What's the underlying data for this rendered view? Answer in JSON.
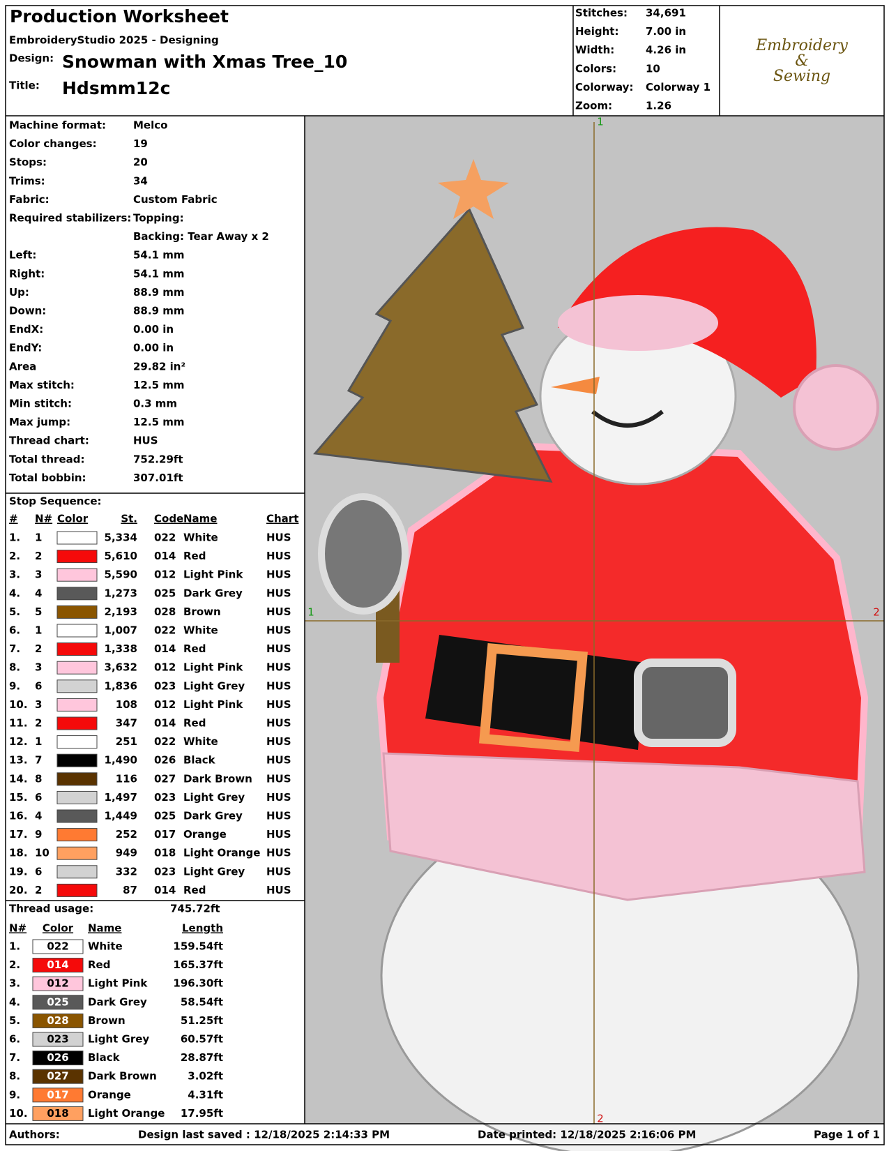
{
  "header": {
    "title": "Production Worksheet",
    "software": "EmbroideryStudio 2025 - Designing",
    "design_label": "Design:",
    "design": "Snowman with Xmas Tree_10",
    "title_label": "Title:",
    "title_value": "Hdsmm12c"
  },
  "summary": [
    [
      "Stitches:",
      "34,691"
    ],
    [
      "Height:",
      "7.00 in"
    ],
    [
      "Width:",
      "4.26 in"
    ],
    [
      "Colors:",
      "10"
    ],
    [
      "Colorway:",
      "Colorway 1"
    ],
    [
      "Zoom:",
      "1.26"
    ]
  ],
  "logo": [
    "Embroidery",
    "&",
    "Sewing"
  ],
  "machine": {
    "rows_top": [
      [
        "Machine format:",
        "Melco"
      ],
      [
        "Color changes:",
        "19"
      ],
      [
        "Stops:",
        "20"
      ],
      [
        "Trims:",
        "34"
      ],
      [
        "Fabric:",
        "Custom Fabric"
      ]
    ],
    "stabilizers": {
      "label": "Required stabilizers:",
      "topping": "Topping:",
      "backing": "Backing: Tear Away x 2"
    },
    "rows_bottom": [
      [
        "Left:",
        "54.1 mm"
      ],
      [
        "Right:",
        "54.1 mm"
      ],
      [
        "Up:",
        "88.9 mm"
      ],
      [
        "Down:",
        "88.9 mm"
      ],
      [
        "EndX:",
        "0.00 in"
      ],
      [
        "EndY:",
        "0.00 in"
      ],
      [
        "Area",
        "29.82 in²"
      ],
      [
        "Max stitch:",
        "12.5 mm"
      ],
      [
        "Min stitch:",
        "0.3 mm"
      ],
      [
        "Max jump:",
        "12.5 mm"
      ],
      [
        "Thread chart:",
        "HUS"
      ],
      [
        "Total thread:",
        "752.29ft"
      ],
      [
        "Total bobbin:",
        "307.01ft"
      ]
    ]
  },
  "stop_sequence": {
    "title": "Stop Sequence:",
    "headers": [
      "#",
      "N#",
      "Color",
      "St.",
      "Code",
      "Name",
      "Chart"
    ],
    "rows": [
      [
        "1.",
        "1",
        "#ffffff",
        "5,334",
        "022",
        "White",
        "HUS"
      ],
      [
        "2.",
        "2",
        "#f50a0a",
        "5,610",
        "014",
        "Red",
        "HUS"
      ],
      [
        "3.",
        "3",
        "#ffc6dc",
        "5,590",
        "012",
        "Light Pink",
        "HUS"
      ],
      [
        "4.",
        "4",
        "#595959",
        "1,273",
        "025",
        "Dark Grey",
        "HUS"
      ],
      [
        "5.",
        "5",
        "#8a5500",
        "2,193",
        "028",
        "Brown",
        "HUS"
      ],
      [
        "6.",
        "1",
        "#ffffff",
        "1,007",
        "022",
        "White",
        "HUS"
      ],
      [
        "7.",
        "2",
        "#f50a0a",
        "1,338",
        "014",
        "Red",
        "HUS"
      ],
      [
        "8.",
        "3",
        "#ffc6dc",
        "3,632",
        "012",
        "Light Pink",
        "HUS"
      ],
      [
        "9.",
        "6",
        "#d2d2d2",
        "1,836",
        "023",
        "Light Grey",
        "HUS"
      ],
      [
        "10.",
        "3",
        "#ffc6dc",
        "108",
        "012",
        "Light Pink",
        "HUS"
      ],
      [
        "11.",
        "2",
        "#f50a0a",
        "347",
        "014",
        "Red",
        "HUS"
      ],
      [
        "12.",
        "1",
        "#ffffff",
        "251",
        "022",
        "White",
        "HUS"
      ],
      [
        "13.",
        "7",
        "#000000",
        "1,490",
        "026",
        "Black",
        "HUS"
      ],
      [
        "14.",
        "8",
        "#5a3300",
        "116",
        "027",
        "Dark Brown",
        "HUS"
      ],
      [
        "15.",
        "6",
        "#d2d2d2",
        "1,497",
        "023",
        "Light Grey",
        "HUS"
      ],
      [
        "16.",
        "4",
        "#595959",
        "1,449",
        "025",
        "Dark Grey",
        "HUS"
      ],
      [
        "17.",
        "9",
        "#ff7a32",
        "252",
        "017",
        "Orange",
        "HUS"
      ],
      [
        "18.",
        "10",
        "#ffa060",
        "949",
        "018",
        "Light Orange",
        "HUS"
      ],
      [
        "19.",
        "6",
        "#d2d2d2",
        "332",
        "023",
        "Light Grey",
        "HUS"
      ],
      [
        "20.",
        "2",
        "#f50a0a",
        "87",
        "014",
        "Red",
        "HUS"
      ]
    ]
  },
  "thread_usage": {
    "title": "Thread usage:",
    "total": "745.72ft",
    "headers": [
      "N#",
      "Color",
      "Name",
      "Length"
    ],
    "rows": [
      [
        "1.",
        "022",
        "#ffffff",
        "White",
        "159.54ft"
      ],
      [
        "2.",
        "014",
        "#f50a0a",
        "Red",
        "165.37ft"
      ],
      [
        "3.",
        "012",
        "#ffc6dc",
        "Light Pink",
        "196.30ft"
      ],
      [
        "4.",
        "025",
        "#595959",
        "Dark Grey",
        "58.54ft"
      ],
      [
        "5.",
        "028",
        "#8a5500",
        "Brown",
        "51.25ft"
      ],
      [
        "6.",
        "023",
        "#d2d2d2",
        "Light Grey",
        "60.57ft"
      ],
      [
        "7.",
        "026",
        "#000000",
        "Black",
        "28.87ft"
      ],
      [
        "8.",
        "027",
        "#5a3300",
        "Dark Brown",
        "3.02ft"
      ],
      [
        "9.",
        "017",
        "#ff7a32",
        "Orange",
        "4.31ft"
      ],
      [
        "10.",
        "018",
        "#ffa060",
        "Light Orange",
        "17.95ft"
      ]
    ]
  },
  "design_view": {
    "axis_labels": [
      "1",
      "1",
      "2",
      "2"
    ]
  },
  "footer": {
    "authors": "Authors:",
    "saved": "Design last saved : 12/18/2025 2:14:33 PM",
    "printed": "Date printed: 12/18/2025 2:16:06 PM",
    "page": "Page 1 of 1"
  }
}
